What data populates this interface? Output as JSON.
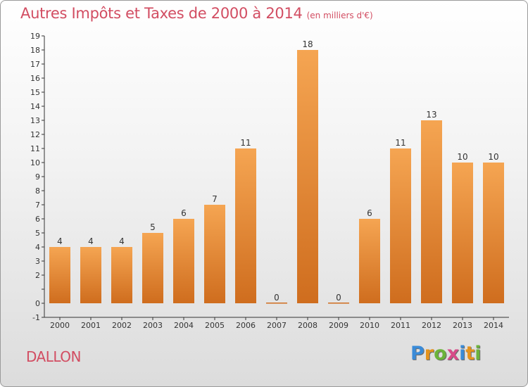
{
  "title": "Autres Impôts et Taxes de 2000 à 2014",
  "subtitle": "(en milliers d'€)",
  "commune": "DALLON",
  "logo": {
    "letters": [
      "P",
      "r",
      "o",
      "x",
      "i",
      "t",
      "i"
    ],
    "colors": [
      "#3a8bd8",
      "#e5931c",
      "#6bb33a",
      "#d84a88",
      "#3a8bd8",
      "#e5931c",
      "#6bb33a"
    ]
  },
  "colors": {
    "bar_top": "#f5a552",
    "bar_bottom": "#cf6d1e",
    "title": "#d24d62"
  },
  "chart_data": {
    "type": "bar",
    "title": "Autres Impôts et Taxes de 2000 à 2014",
    "subtitle": "(en milliers d'€)",
    "categories": [
      "2000",
      "2001",
      "2002",
      "2003",
      "2004",
      "2005",
      "2006",
      "2007",
      "2008",
      "2009",
      "2010",
      "2011",
      "2012",
      "2013",
      "2014"
    ],
    "values": [
      4,
      4,
      4,
      5,
      6,
      7,
      11,
      0,
      18,
      0,
      6,
      11,
      13,
      10,
      10
    ],
    "ylim": [
      -1,
      19
    ],
    "yticks": [
      "-1",
      "0",
      "",
      "2",
      "3",
      "4",
      "5",
      "6",
      "7",
      "8",
      "9",
      "10",
      "11",
      "12",
      "13",
      "14",
      "15",
      "16",
      "17",
      "18",
      "19"
    ],
    "grid": false,
    "legend": "none"
  }
}
